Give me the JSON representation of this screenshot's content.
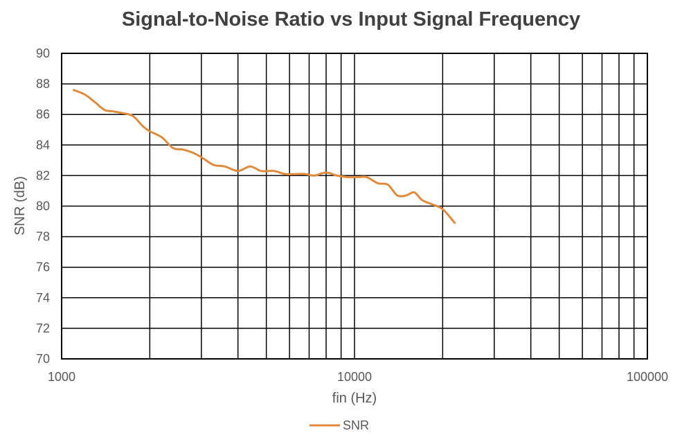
{
  "chart_data": {
    "type": "line",
    "title": "Signal-to-Noise Ratio vs Input Signal Frequency",
    "xlabel": "fin (Hz)",
    "ylabel": "SNR (dB)",
    "xscale": "log",
    "xlim": [
      1000,
      100000
    ],
    "ylim": [
      70,
      90
    ],
    "xticks": [
      "1000",
      "10000",
      "100000"
    ],
    "yticks": [
      "70",
      "72",
      "74",
      "76",
      "78",
      "80",
      "82",
      "84",
      "86",
      "88",
      "90"
    ],
    "grid": true,
    "legend": "bottom-center",
    "series": [
      {
        "name": "SNR",
        "color": "#e08a3c",
        "x": [
          1100,
          1200,
          1300,
          1400,
          1500,
          1600,
          1750,
          1900,
          2000,
          2200,
          2400,
          2600,
          2800,
          3000,
          3300,
          3600,
          4000,
          4400,
          4800,
          5300,
          5800,
          6300,
          6800,
          7300,
          8000,
          8700,
          9500,
          10300,
          11000,
          12000,
          13000,
          14000,
          15000,
          16000,
          17000,
          18500,
          20000,
          22000
        ],
        "y": [
          87.6,
          87.3,
          86.8,
          86.3,
          86.2,
          86.1,
          85.9,
          85.2,
          84.9,
          84.5,
          83.8,
          83.7,
          83.5,
          83.2,
          82.7,
          82.6,
          82.3,
          82.6,
          82.3,
          82.3,
          82.1,
          82.1,
          82.1,
          82.0,
          82.2,
          82.0,
          81.9,
          81.9,
          81.9,
          81.5,
          81.4,
          80.7,
          80.7,
          80.9,
          80.4,
          80.1,
          79.8,
          78.9
        ]
      }
    ]
  }
}
